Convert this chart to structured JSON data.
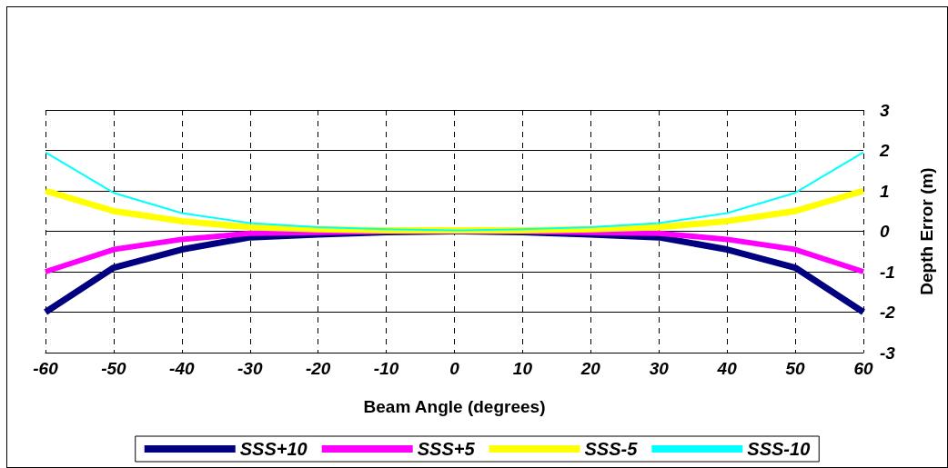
{
  "chart_data": {
    "type": "line",
    "xlabel": "Beam Angle (degrees)",
    "ylabel": "Depth Error (m)",
    "x": [
      -60,
      -50,
      -40,
      -30,
      -20,
      -10,
      0,
      10,
      20,
      30,
      40,
      50,
      60
    ],
    "series": [
      {
        "name": "SSS+10",
        "color": "#000080",
        "values": [
          -2,
          -0.9,
          -0.45,
          -0.15,
          -0.08,
          -0.02,
          0,
          -0.02,
          -0.08,
          -0.15,
          -0.45,
          -0.9,
          -2
        ]
      },
      {
        "name": "SSS+5",
        "color": "#ff00ff",
        "values": [
          -1,
          -0.45,
          -0.2,
          -0.05,
          -0.03,
          0,
          0,
          0,
          -0.03,
          -0.05,
          -0.2,
          -0.45,
          -1
        ]
      },
      {
        "name": "SSS-5",
        "color": "#ffff00",
        "values": [
          1,
          0.5,
          0.25,
          0.1,
          0.05,
          0.02,
          0.02,
          0.02,
          0.05,
          0.1,
          0.25,
          0.5,
          1
        ]
      },
      {
        "name": "SSS-10",
        "color": "#00ffff",
        "values": [
          1.95,
          0.95,
          0.45,
          0.2,
          0.1,
          0.05,
          0.02,
          0.05,
          0.1,
          0.2,
          0.45,
          0.95,
          1.95
        ]
      }
    ],
    "xlim": [
      -60,
      60
    ],
    "xticks": [
      -60,
      -50,
      -40,
      -30,
      -20,
      -10,
      0,
      10,
      20,
      30,
      40,
      50,
      60
    ],
    "ylim": [
      -3,
      3
    ],
    "yticks": [
      -3,
      -2,
      -1,
      0,
      1,
      2,
      3
    ],
    "grid": true,
    "legend": "bottom",
    "marker": "none",
    "line_style": "solid"
  }
}
